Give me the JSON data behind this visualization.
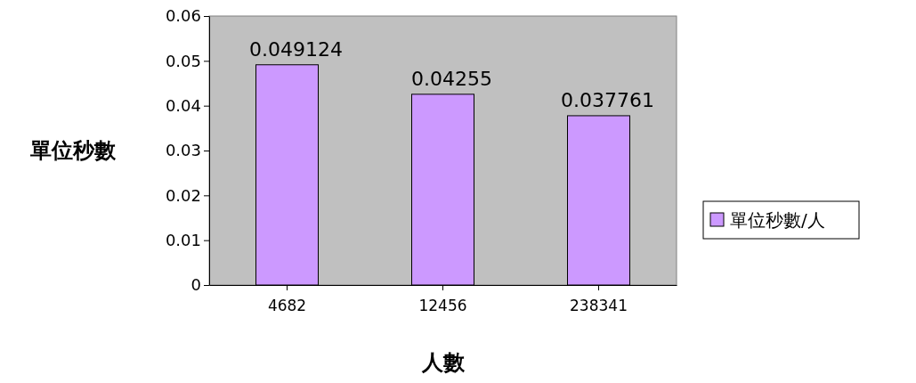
{
  "chart_data": {
    "type": "bar",
    "categories": [
      "4682",
      "12456",
      "238341"
    ],
    "series": [
      {
        "name": "單位秒數/人",
        "color": "#cc99ff",
        "values": [
          0.049124,
          0.04255,
          0.037761
        ]
      }
    ],
    "ylim": [
      0,
      0.06
    ],
    "yticks": [
      0,
      0.01,
      0.02,
      0.03,
      0.04,
      0.05,
      0.06
    ],
    "ylabel": "單位秒數",
    "xlabel": "人數",
    "data_labels": true,
    "legend": "right",
    "grid": false
  }
}
